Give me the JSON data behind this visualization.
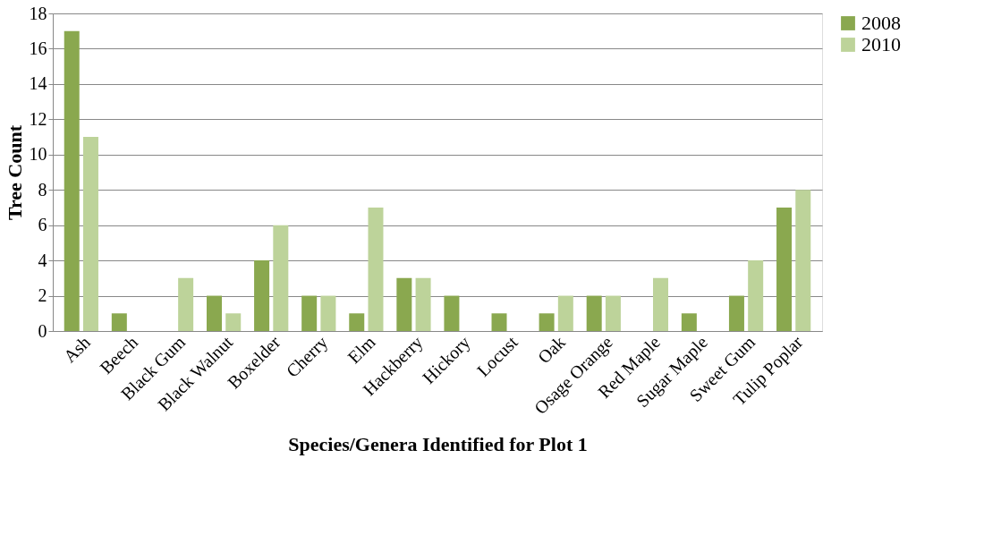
{
  "chart_data": {
    "type": "bar",
    "xlabel": "Species/Genera Identified for Plot 1",
    "ylabel": "Tree Count",
    "categories": [
      "Ash",
      "Beech",
      "Black Gum",
      "Black Walnut",
      "Boxelder",
      "Cherry",
      "Elm",
      "Hackberry",
      "Hickory",
      "Locust",
      "Oak",
      "Osage Orange",
      "Red Maple",
      "Sugar Maple",
      "Sweet Gum",
      "Tulip Poplar"
    ],
    "series": [
      {
        "name": "2008",
        "color": "#8aa84f",
        "values": [
          17,
          1,
          0,
          2,
          4,
          2,
          1,
          3,
          2,
          1,
          1,
          2,
          0,
          1,
          2,
          7
        ]
      },
      {
        "name": "2010",
        "color": "#bdd39a",
        "values": [
          11,
          0,
          3,
          1,
          6,
          2,
          7,
          3,
          0,
          0,
          2,
          2,
          3,
          0,
          4,
          8
        ]
      }
    ],
    "ylim": [
      0,
      18
    ],
    "yticks": [
      0,
      2,
      4,
      6,
      8,
      10,
      12,
      14,
      16,
      18
    ],
    "grid": "y",
    "legend": "right"
  }
}
